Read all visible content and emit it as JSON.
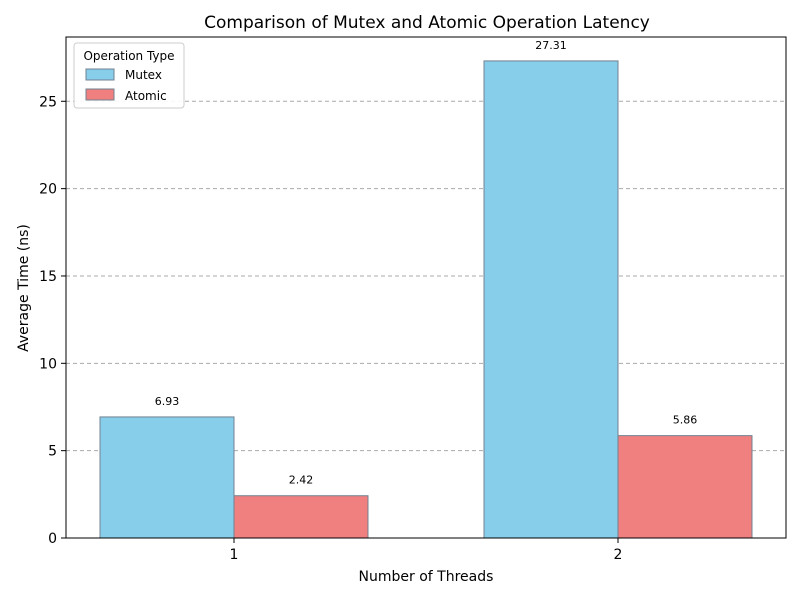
{
  "chart_data": {
    "type": "bar",
    "title": "Comparison of Mutex and Atomic Operation Latency",
    "xlabel": "Number of Threads",
    "ylabel": "Average Time (ns)",
    "categories": [
      "1",
      "2"
    ],
    "ylim": [
      0,
      28.68
    ],
    "yticks": [
      0,
      5,
      10,
      15,
      20,
      25
    ],
    "grid": "y-dashed",
    "legend": {
      "title": "Operation Type",
      "placement": "top-left"
    },
    "series": [
      {
        "name": "Mutex",
        "values": [
          6.93,
          27.31
        ],
        "labels": [
          "6.93",
          "27.31"
        ],
        "color": "#87ceeb"
      },
      {
        "name": "Atomic",
        "values": [
          2.42,
          5.86
        ],
        "labels": [
          "2.42",
          "5.86"
        ],
        "color": "#f08080"
      }
    ],
    "edge_color": "#708090"
  }
}
